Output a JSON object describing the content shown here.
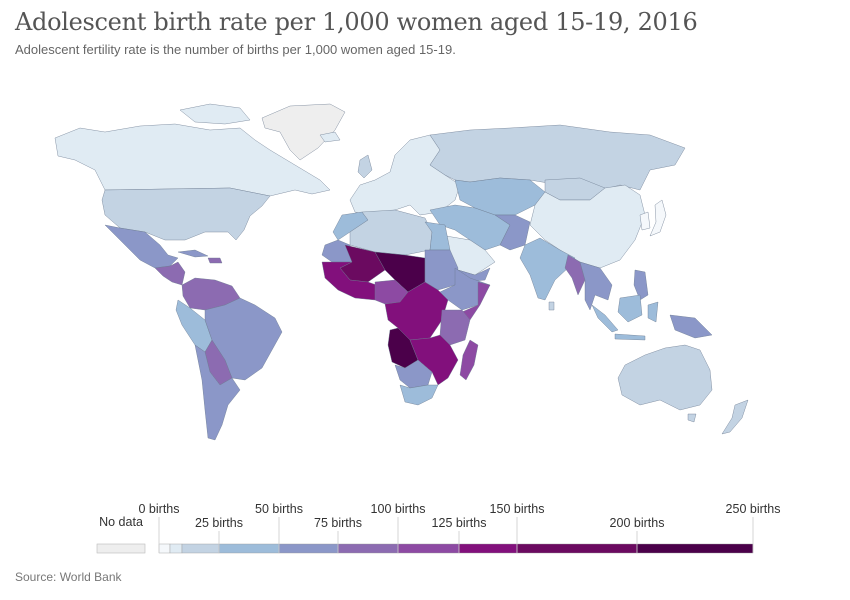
{
  "header": {
    "title": "Adolescent birth rate per 1,000 women aged 15-19, 2016",
    "subtitle": "Adolescent fertility rate is the number of births per 1,000 women aged 15-19."
  },
  "footer": {
    "source": "Source: World Bank"
  },
  "legend": {
    "no_data_label": "No data",
    "no_data_color": "#eeeeee",
    "bins": [
      {
        "min": 0,
        "max": 5,
        "color": "#f5f8fb"
      },
      {
        "min": 5,
        "max": 10,
        "color": "#e0ebf3"
      },
      {
        "min": 10,
        "max": 25,
        "color": "#c3d3e3"
      },
      {
        "min": 25,
        "max": 50,
        "color": "#9dbcda"
      },
      {
        "min": 50,
        "max": 75,
        "color": "#8b97c8"
      },
      {
        "min": 75,
        "max": 100,
        "color": "#8c6bb1"
      },
      {
        "min": 100,
        "max": 125,
        "color": "#8d4aa3"
      },
      {
        "min": 125,
        "max": 150,
        "color": "#82107c"
      },
      {
        "min": 150,
        "max": 200,
        "color": "#6b0a60"
      },
      {
        "min": 200,
        "max": 250,
        "color": "#4b004a"
      }
    ],
    "ticks": [
      "0 births",
      "25 births",
      "50 births",
      "75 births",
      "100 births",
      "125 births",
      "150 births",
      "200 births",
      "250 births"
    ]
  }
}
